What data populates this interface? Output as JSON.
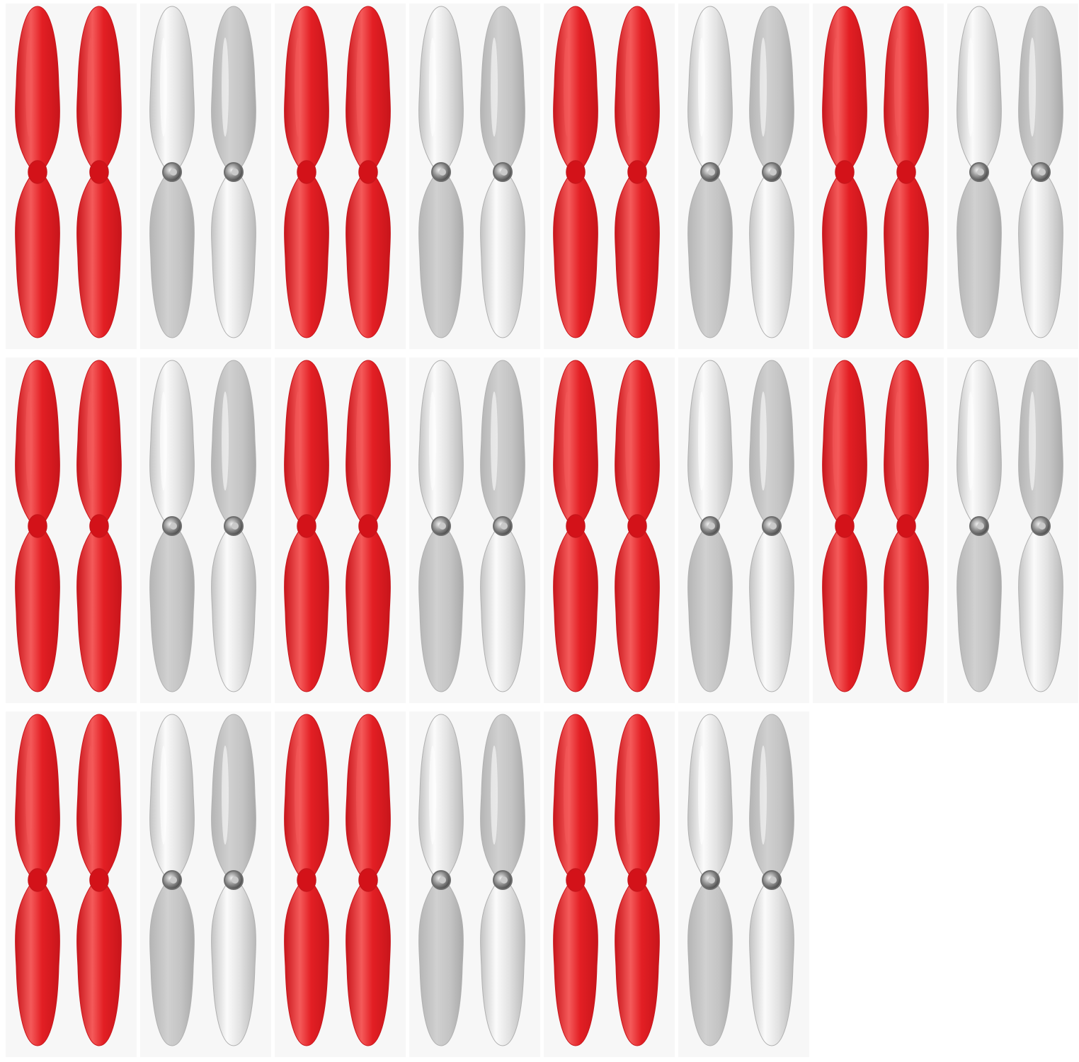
{
  "image": {
    "subject": "propeller-packs",
    "background_color": "#ffffff",
    "tile_color": "#f7f7f7"
  },
  "layout": {
    "packs_per_row": [
      8,
      8,
      6
    ],
    "color_cycle": [
      "red",
      "clear"
    ],
    "blades_per_pack": 2
  },
  "colors": {
    "red": {
      "base": "#e31f24",
      "dark": "#c8151b",
      "highlight": "#f45a5a",
      "hub": "#d31219"
    },
    "clear": {
      "base": "#dcdcdc",
      "dark": "#b9b9b9",
      "highlight": "#fbfbfb",
      "hub_ring": "#6e6e6e",
      "hub_core": "#c9c9c9"
    }
  }
}
